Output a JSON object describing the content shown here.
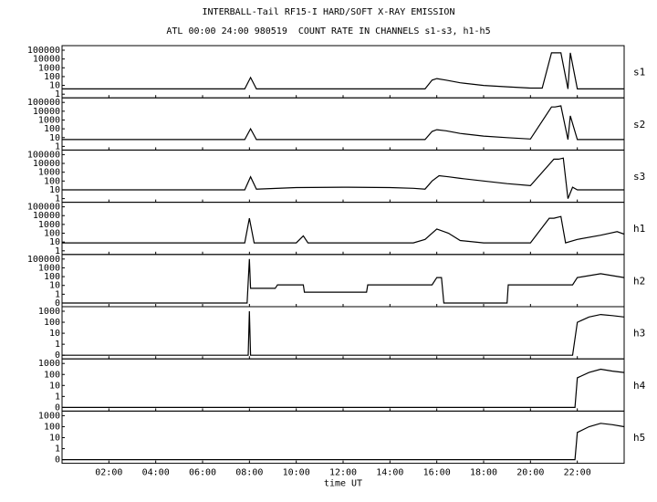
{
  "title_line1": "INTERBALL-Tail RF15-I HARD/SOFT X-RAY EMISSION",
  "title_line2": "ATL 00:00 24:00 980519  COUNT RATE IN CHANNELS s1-s3, h1-h5",
  "chart_data": {
    "type": "line",
    "xlabel": "time UT",
    "x_unit": "hours UT",
    "xlim": [
      0,
      24
    ],
    "x_ticks": [
      {
        "value": 2,
        "label": "02:00"
      },
      {
        "value": 4,
        "label": "04:00"
      },
      {
        "value": 6,
        "label": "06:00"
      },
      {
        "value": 8,
        "label": "08:00"
      },
      {
        "value": 10,
        "label": "10:00"
      },
      {
        "value": 12,
        "label": "12:00"
      },
      {
        "value": 14,
        "label": "14:00"
      },
      {
        "value": 16,
        "label": "16:00"
      },
      {
        "value": 18,
        "label": "18:00"
      },
      {
        "value": 20,
        "label": "20:00"
      },
      {
        "value": 22,
        "label": "22:00"
      }
    ],
    "y_scale": "log",
    "panels": [
      {
        "name": "s1",
        "ylim": [
          1,
          100000
        ],
        "y_ticks": [
          "100000",
          "10000",
          "1000",
          "100",
          "10",
          "1"
        ],
        "series": {
          "x": [
            0,
            7.8,
            8.05,
            8.3,
            9.6,
            10,
            11,
            12,
            13,
            14,
            15,
            15.5,
            15.8,
            16,
            16.4,
            17,
            18,
            19,
            20,
            20.5,
            20.9,
            21.05,
            21.3,
            21.6,
            21.7,
            22,
            23,
            24
          ],
          "y": [
            4,
            4,
            80,
            4,
            4,
            4,
            4,
            4,
            4,
            4,
            4,
            4,
            40,
            60,
            40,
            20,
            10,
            7,
            5,
            5,
            50000,
            50000,
            50000,
            4,
            50000,
            4,
            4,
            4
          ]
        }
      },
      {
        "name": "s2",
        "ylim": [
          1,
          100000
        ],
        "y_ticks": [
          "100000",
          "10000",
          "1000",
          "100",
          "10",
          "1"
        ],
        "series": {
          "x": [
            0,
            7.8,
            8.05,
            8.3,
            10,
            12,
            14,
            15,
            15.5,
            15.8,
            16,
            16.4,
            17,
            18,
            19,
            20,
            20.9,
            21.05,
            21.3,
            21.6,
            21.7,
            22,
            24
          ],
          "y": [
            6,
            6,
            100,
            6,
            6,
            6,
            6,
            6,
            6,
            50,
            80,
            60,
            30,
            15,
            10,
            7,
            30000,
            30000,
            40000,
            6,
            3000,
            6,
            6
          ]
        }
      },
      {
        "name": "s3",
        "ylim": [
          1,
          100000
        ],
        "y_ticks": [
          "100000",
          "10000",
          "1000",
          "100",
          "10",
          "1"
        ],
        "series": {
          "x": [
            0,
            7.8,
            8.05,
            8.3,
            10,
            12,
            14,
            15,
            15.5,
            15.8,
            16.1,
            16.5,
            17,
            18,
            19,
            20,
            21,
            21.2,
            21.4,
            21.6,
            21.8,
            22,
            24
          ],
          "y": [
            10,
            10,
            300,
            12,
            18,
            20,
            18,
            15,
            12,
            100,
            400,
            300,
            200,
            100,
            50,
            30,
            30000,
            30000,
            40000,
            0.5,
            20,
            10,
            10
          ]
        }
      },
      {
        "name": "h1",
        "ylim": [
          1,
          100000
        ],
        "y_ticks": [
          "100000",
          "10000",
          "1000",
          "100",
          "10",
          "1"
        ],
        "series": {
          "x": [
            0,
            7.8,
            8.0,
            8.2,
            10,
            10.3,
            10.5,
            12,
            14,
            15,
            15.5,
            16,
            16.5,
            17,
            18,
            20,
            20.8,
            21,
            21.3,
            21.5,
            22,
            23,
            23.7,
            24
          ],
          "y": [
            8,
            8,
            5000,
            8,
            8,
            50,
            8,
            8,
            8,
            8,
            20,
            300,
            100,
            15,
            8,
            8,
            5000,
            5000,
            8000,
            8,
            20,
            60,
            150,
            80
          ]
        }
      },
      {
        "name": "h2",
        "ylim": [
          0.1,
          100000
        ],
        "y_ticks": [
          "100000",
          "1000",
          "100",
          "10",
          "1",
          "0"
        ],
        "series": {
          "x": [
            0,
            7.9,
            8.0,
            8.05,
            9.1,
            9.2,
            10.3,
            10.35,
            13.0,
            13.05,
            15.8,
            16.0,
            16.2,
            16.3,
            19.0,
            19.05,
            21.8,
            22.0,
            23.0,
            24
          ],
          "y": [
            0.1,
            0.1,
            100000,
            10,
            10,
            30,
            30,
            3,
            3,
            30,
            30,
            300,
            300,
            0.1,
            0.1,
            30,
            30,
            300,
            1000,
            300
          ]
        }
      },
      {
        "name": "h3",
        "ylim": [
          0.1,
          1000
        ],
        "y_ticks": [
          "1000",
          "100",
          "10",
          "1",
          "0"
        ],
        "series": {
          "x": [
            0,
            7.95,
            8.0,
            8.05,
            21.8,
            22.0,
            22.5,
            23.0,
            23.5,
            24
          ],
          "y": [
            0.1,
            0.1,
            1000,
            0.1,
            0.1,
            100,
            300,
            500,
            400,
            300
          ]
        }
      },
      {
        "name": "h4",
        "ylim": [
          0.1,
          1000
        ],
        "y_ticks": [
          "1000",
          "100",
          "10",
          "1",
          "0"
        ],
        "series": {
          "x": [
            0,
            21.9,
            22.0,
            22.5,
            23.0,
            23.5,
            24
          ],
          "y": [
            0.1,
            0.1,
            50,
            150,
            300,
            200,
            150
          ]
        }
      },
      {
        "name": "h5",
        "ylim": [
          0.1,
          1000
        ],
        "y_ticks": [
          "1000",
          "100",
          "10",
          "1",
          "0"
        ],
        "series": {
          "x": [
            0,
            21.9,
            22.0,
            22.5,
            23.0,
            23.5,
            24
          ],
          "y": [
            0.1,
            0.1,
            30,
            100,
            200,
            150,
            100
          ]
        }
      }
    ]
  }
}
